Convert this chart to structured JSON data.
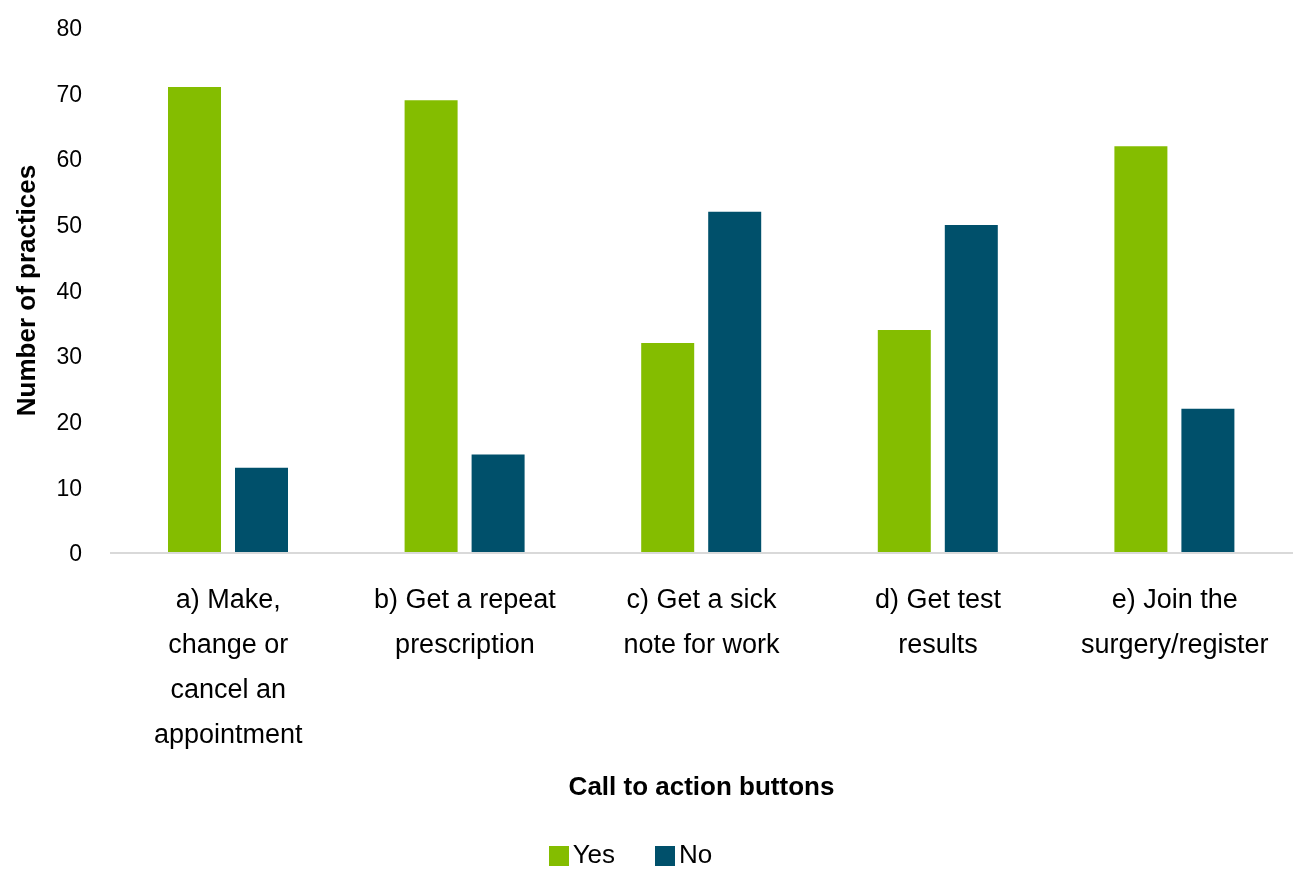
{
  "chart_data": {
    "type": "bar",
    "categories": [
      "a) Make, change or cancel an appointment",
      "b) Get a repeat prescription",
      "c) Get a sick note for work",
      "d) Get test results",
      "e) Join the surgery/register"
    ],
    "series": [
      {
        "name": "Yes",
        "color": "#84bd00",
        "values": [
          71,
          69,
          32,
          34,
          62
        ]
      },
      {
        "name": "No",
        "color": "#00506b",
        "values": [
          13,
          15,
          52,
          50,
          22
        ]
      }
    ],
    "xlabel": "Call to action buttons",
    "ylabel": "Number of practices",
    "ylim": [
      0,
      80
    ],
    "yticks": [
      0,
      10,
      20,
      30,
      40,
      50,
      60,
      70,
      80
    ],
    "legend": "bottom"
  }
}
